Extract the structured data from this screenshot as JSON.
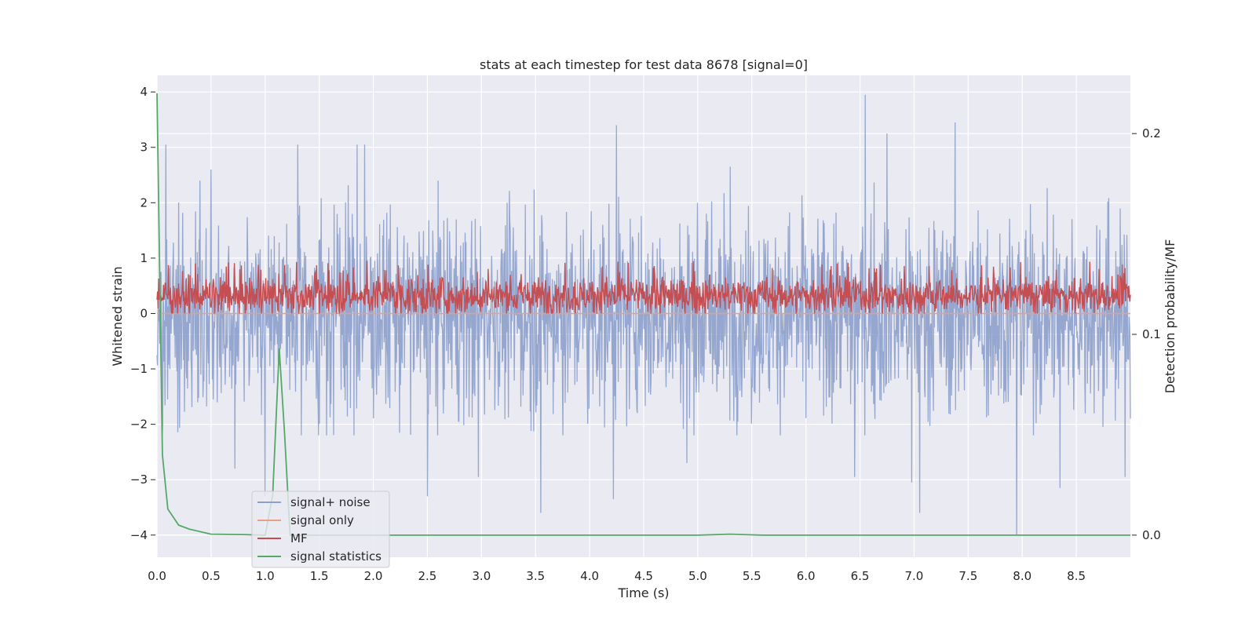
{
  "chart_data": {
    "type": "line",
    "title": "stats at each timestep for test data 8678 [signal=0]",
    "xlabel": "Time (s)",
    "ylabel": "Whitened strain",
    "y2label": "Detection probability/MF",
    "xlim": [
      0.0,
      9.0
    ],
    "ylim": [
      -4.4,
      4.3
    ],
    "y2lim": [
      -0.011,
      0.229
    ],
    "xticks": [
      0.0,
      0.5,
      1.0,
      1.5,
      2.0,
      2.5,
      3.0,
      3.5,
      4.0,
      4.5,
      5.0,
      5.5,
      6.0,
      6.5,
      7.0,
      7.5,
      8.0,
      8.5
    ],
    "xtick_labels": [
      "0.0",
      "0.5",
      "1.0",
      "1.5",
      "2.0",
      "2.5",
      "3.0",
      "3.5",
      "4.0",
      "4.5",
      "5.0",
      "5.5",
      "6.0",
      "6.5",
      "7.0",
      "7.5",
      "8.0",
      "8.5"
    ],
    "yticks": [
      -4,
      -3,
      -2,
      -1,
      0,
      1,
      2,
      3,
      4
    ],
    "ytick_labels": [
      "−4",
      "−3",
      "−2",
      "−1",
      "0",
      "1",
      "2",
      "3",
      "4"
    ],
    "y2ticks": [
      0.0,
      0.1,
      0.2
    ],
    "y2tick_labels": [
      "0.0",
      "0.1",
      "0.2"
    ],
    "grid": true,
    "legend_position": "lower-left",
    "series": [
      {
        "name": "signal+ noise",
        "axis": "left",
        "color": "#8da0cb",
        "description": "dense whitened strain noise, roughly symmetric about 0, typical amplitude ±2, peaks to about +3.9 near t=6.55 s and -4.0 near t=7.95 s",
        "noise_range": [
          -2.2,
          2.4
        ],
        "spikes": [
          {
            "x": 0.08,
            "y": 3.05
          },
          {
            "x": 0.5,
            "y": 2.6
          },
          {
            "x": 0.72,
            "y": -2.8
          },
          {
            "x": 1.0,
            "y": -3.3
          },
          {
            "x": 1.3,
            "y": 3.05
          },
          {
            "x": 1.85,
            "y": 3.05
          },
          {
            "x": 1.92,
            "y": 3.05
          },
          {
            "x": 2.5,
            "y": -3.3
          },
          {
            "x": 2.97,
            "y": -2.95
          },
          {
            "x": 3.55,
            "y": -3.6
          },
          {
            "x": 4.22,
            "y": -3.35
          },
          {
            "x": 4.25,
            "y": 3.4
          },
          {
            "x": 4.9,
            "y": -2.7
          },
          {
            "x": 5.3,
            "y": 2.65
          },
          {
            "x": 6.45,
            "y": -2.95
          },
          {
            "x": 6.55,
            "y": 3.95
          },
          {
            "x": 6.75,
            "y": 3.25
          },
          {
            "x": 6.98,
            "y": -3.05
          },
          {
            "x": 7.05,
            "y": -3.6
          },
          {
            "x": 7.38,
            "y": 3.45
          },
          {
            "x": 7.95,
            "y": -4.0
          },
          {
            "x": 8.35,
            "y": -3.15
          },
          {
            "x": 8.95,
            "y": -2.95
          }
        ]
      },
      {
        "name": "signal only",
        "axis": "left",
        "color": "#e9a080",
        "description": "flat zero line (no injected signal)",
        "points": [
          [
            0.0,
            0.0
          ],
          [
            9.0,
            0.0
          ]
        ]
      },
      {
        "name": "MF",
        "axis": "left",
        "color": "#c44e52",
        "description": "matched-filter output, non-negative, mostly between 0 and 0.7, occasional peaks near 0.95",
        "envelope": [
          0.0,
          0.95
        ]
      },
      {
        "name": "signal statistics",
        "axis": "right",
        "color": "#55a868",
        "points": [
          [
            0.0,
            0.22
          ],
          [
            0.05,
            0.04
          ],
          [
            0.1,
            0.013
          ],
          [
            0.2,
            0.005
          ],
          [
            0.3,
            0.003
          ],
          [
            0.5,
            0.0005
          ],
          [
            0.8,
            0.0003
          ],
          [
            1.0,
            0.0
          ],
          [
            1.07,
            0.02
          ],
          [
            1.13,
            0.093
          ],
          [
            1.18,
            0.05
          ],
          [
            1.23,
            0.0
          ],
          [
            1.5,
            0.0
          ],
          [
            3.0,
            0.0
          ],
          [
            5.0,
            0.0
          ],
          [
            5.3,
            0.0005
          ],
          [
            5.6,
            0.0
          ],
          [
            8.5,
            0.0
          ],
          [
            9.0,
            0.0
          ]
        ]
      }
    ]
  }
}
